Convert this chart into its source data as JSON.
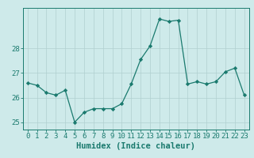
{
  "x": [
    0,
    1,
    2,
    3,
    4,
    5,
    6,
    7,
    8,
    9,
    10,
    11,
    12,
    13,
    14,
    15,
    16,
    17,
    18,
    19,
    20,
    21,
    22,
    23
  ],
  "y": [
    26.6,
    26.5,
    26.2,
    26.1,
    26.3,
    25.0,
    25.4,
    25.55,
    25.55,
    25.55,
    25.75,
    26.55,
    27.55,
    28.1,
    29.2,
    29.1,
    29.15,
    26.55,
    26.65,
    26.55,
    26.65,
    27.05,
    27.2,
    26.1
  ],
  "line_color": "#1a7a6e",
  "marker": "D",
  "marker_size": 2.2,
  "bg_color": "#ceeaea",
  "grid_color": "#b0d0d0",
  "xlabel": "Humidex (Indice chaleur)",
  "ylim": [
    24.7,
    29.65
  ],
  "yticks": [
    25,
    26,
    27,
    28
  ],
  "xticks": [
    0,
    1,
    2,
    3,
    4,
    5,
    6,
    7,
    8,
    9,
    10,
    11,
    12,
    13,
    14,
    15,
    16,
    17,
    18,
    19,
    20,
    21,
    22,
    23
  ],
  "xlabel_fontsize": 7.5,
  "tick_fontsize": 6.5
}
